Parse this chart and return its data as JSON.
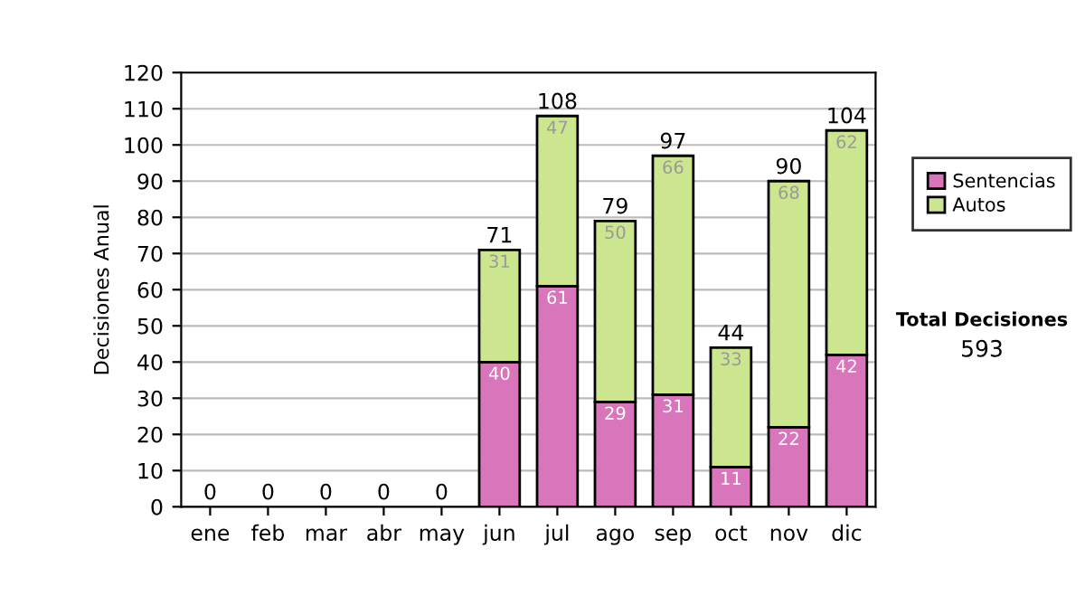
{
  "chart_data": {
    "type": "bar",
    "stacked": true,
    "ylabel": "Decisiones Anual",
    "categories": [
      "ene",
      "feb",
      "mar",
      "abr",
      "may",
      "jun",
      "jul",
      "ago",
      "sep",
      "oct",
      "nov",
      "dic"
    ],
    "series": [
      {
        "name": "Sentencias",
        "color": "#d975bb",
        "values": [
          0,
          0,
          0,
          0,
          0,
          40,
          61,
          29,
          31,
          11,
          22,
          42
        ],
        "value_labels": [
          null,
          null,
          null,
          null,
          null,
          "40",
          "61",
          "29",
          "31",
          "11",
          "22",
          "42"
        ]
      },
      {
        "name": "Autos",
        "color": "#cce68f",
        "values": [
          0,
          0,
          0,
          0,
          0,
          31,
          47,
          50,
          66,
          33,
          68,
          62
        ],
        "value_labels": [
          null,
          null,
          null,
          null,
          null,
          "31",
          "47",
          "50",
          "66",
          "33",
          "68",
          "62"
        ]
      }
    ],
    "totals": [
      "0",
      "0",
      "0",
      "0",
      "0",
      "71",
      "108",
      "79",
      "97",
      "44",
      "90",
      "104"
    ],
    "ylim": [
      0,
      120
    ],
    "yticks": [
      0,
      10,
      20,
      30,
      40,
      50,
      60,
      70,
      80,
      90,
      100,
      110,
      120
    ],
    "grid": "y",
    "legend": "right",
    "annotations": [
      "Total Decisiones",
      "593"
    ]
  }
}
